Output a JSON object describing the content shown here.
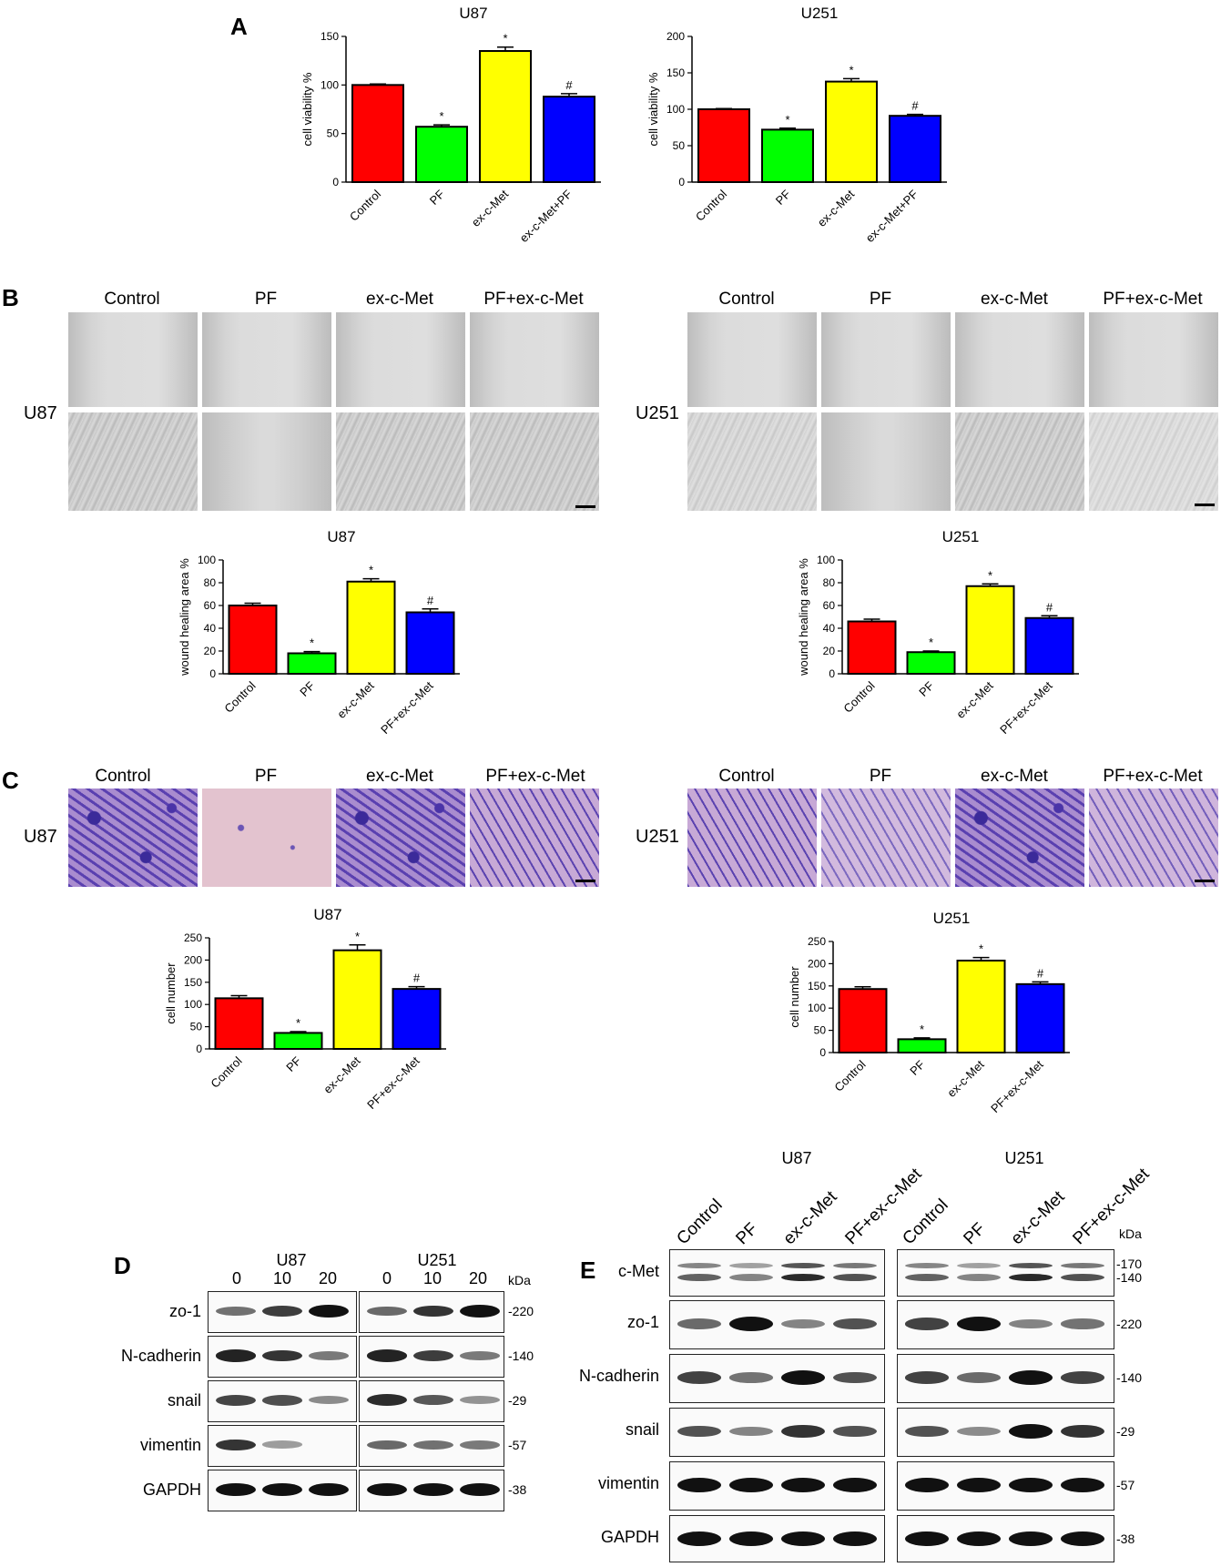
{
  "panels": {
    "A": "A",
    "B": "B",
    "C": "C",
    "D": "D",
    "E": "E"
  },
  "colors": {
    "control": "#ff0000",
    "pf": "#00ff00",
    "exmet": "#ffff00",
    "combo": "#0000ff"
  },
  "icon_names": [
    "microscopy-image",
    "transwell-image",
    "western-blot-band"
  ],
  "chart_data": [
    {
      "id": "A-U87",
      "type": "bar",
      "title": "U87",
      "xlabel": "",
      "ylabel": "cell viability %",
      "categories": [
        "Control",
        "PF",
        "ex-c-Met",
        "ex-c-Met+PF"
      ],
      "values": [
        100,
        57,
        135,
        88
      ],
      "errors": [
        1,
        2,
        4,
        3
      ],
      "annotations": [
        "",
        "*",
        "*",
        "#"
      ],
      "ylim": [
        0,
        150
      ],
      "yticks": [
        0,
        50,
        100,
        150
      ],
      "grid": false,
      "legend": "none"
    },
    {
      "id": "A-U251",
      "type": "bar",
      "title": "U251",
      "xlabel": "",
      "ylabel": "cell viability %",
      "categories": [
        "Control",
        "PF",
        "ex-c-Met",
        "ex-c-Met+PF"
      ],
      "values": [
        100,
        72,
        138,
        91
      ],
      "errors": [
        1,
        2,
        4,
        2
      ],
      "annotations": [
        "",
        "*",
        "*",
        "#"
      ],
      "ylim": [
        0,
        200
      ],
      "yticks": [
        0,
        50,
        100,
        150,
        200
      ],
      "grid": false,
      "legend": "none"
    },
    {
      "id": "B-U87",
      "type": "bar",
      "title": "U87",
      "xlabel": "",
      "ylabel": "wound healing area %",
      "categories": [
        "Control",
        "PF",
        "ex-c-Met",
        "PF+ex-c-Met"
      ],
      "values": [
        60,
        18,
        81,
        54
      ],
      "errors": [
        2,
        1.5,
        2.5,
        3
      ],
      "annotations": [
        "",
        "*",
        "*",
        "#"
      ],
      "ylim": [
        0,
        100
      ],
      "yticks": [
        0,
        20,
        40,
        60,
        80,
        100
      ],
      "grid": false,
      "legend": "none"
    },
    {
      "id": "B-U251",
      "type": "bar",
      "title": "U251",
      "xlabel": "",
      "ylabel": "wound healing area %",
      "categories": [
        "Control",
        "PF",
        "ex-c-Met",
        "PF+ex-c-Met"
      ],
      "values": [
        46,
        19,
        77,
        49
      ],
      "errors": [
        2,
        1,
        2,
        2
      ],
      "annotations": [
        "",
        "*",
        "*",
        "#"
      ],
      "ylim": [
        0,
        100
      ],
      "yticks": [
        0,
        20,
        40,
        60,
        80,
        100
      ],
      "grid": false,
      "legend": "none"
    },
    {
      "id": "C-U87",
      "type": "bar",
      "title": "U87",
      "xlabel": "",
      "ylabel": "cell number",
      "categories": [
        "Control",
        "PF",
        "ex-c-Met",
        "PF+ex-c-Met"
      ],
      "values": [
        114,
        36,
        222,
        135
      ],
      "errors": [
        6,
        3,
        12,
        5
      ],
      "annotations": [
        "",
        "*",
        "*",
        "#"
      ],
      "ylim": [
        0,
        250
      ],
      "yticks": [
        0,
        50,
        100,
        150,
        200,
        250
      ],
      "grid": false,
      "legend": "none"
    },
    {
      "id": "C-U251",
      "type": "bar",
      "title": "U251",
      "xlabel": "",
      "ylabel": "cell number",
      "categories": [
        "Control",
        "PF",
        "ex-c-Met",
        "PF+ex-c-Met"
      ],
      "values": [
        143,
        30,
        207,
        154
      ],
      "errors": [
        5,
        3,
        7,
        5
      ],
      "annotations": [
        "",
        "*",
        "*",
        "#"
      ],
      "ylim": [
        0,
        250
      ],
      "yticks": [
        0,
        50,
        100,
        150,
        200,
        250
      ],
      "grid": false,
      "legend": "none"
    }
  ],
  "panelB": {
    "columns": [
      "Control",
      "PF",
      "ex-c-Met",
      "PF+ex-c-Met"
    ],
    "rows": [
      "U87",
      "U251"
    ]
  },
  "panelC": {
    "columns": [
      "Control",
      "PF",
      "ex-c-Met",
      "PF+ex-c-Met"
    ],
    "rows": [
      "U87",
      "U251"
    ]
  },
  "panelD": {
    "groups": [
      "U87",
      "U251"
    ],
    "doses": [
      "0",
      "10",
      "20"
    ],
    "kda_header": "kDa",
    "proteins": [
      "zo-1",
      "N-cadherin",
      "snail",
      "vimentin",
      "GAPDH"
    ],
    "kda": [
      "220",
      "140",
      "29",
      "57",
      "38"
    ]
  },
  "panelE": {
    "groups": [
      "U87",
      "U251"
    ],
    "lanes": [
      "Control",
      "PF",
      "ex-c-Met",
      "PF+ex-c-Met"
    ],
    "kda_header": "kDa",
    "proteins": [
      "c-Met",
      "zo-1",
      "N-cadherin",
      "snail",
      "vimentin",
      "GAPDH"
    ],
    "kda": [
      [
        "170",
        "140"
      ],
      [
        "220"
      ],
      [
        "140"
      ],
      [
        "29"
      ],
      [
        "57"
      ],
      [
        "38"
      ]
    ]
  }
}
